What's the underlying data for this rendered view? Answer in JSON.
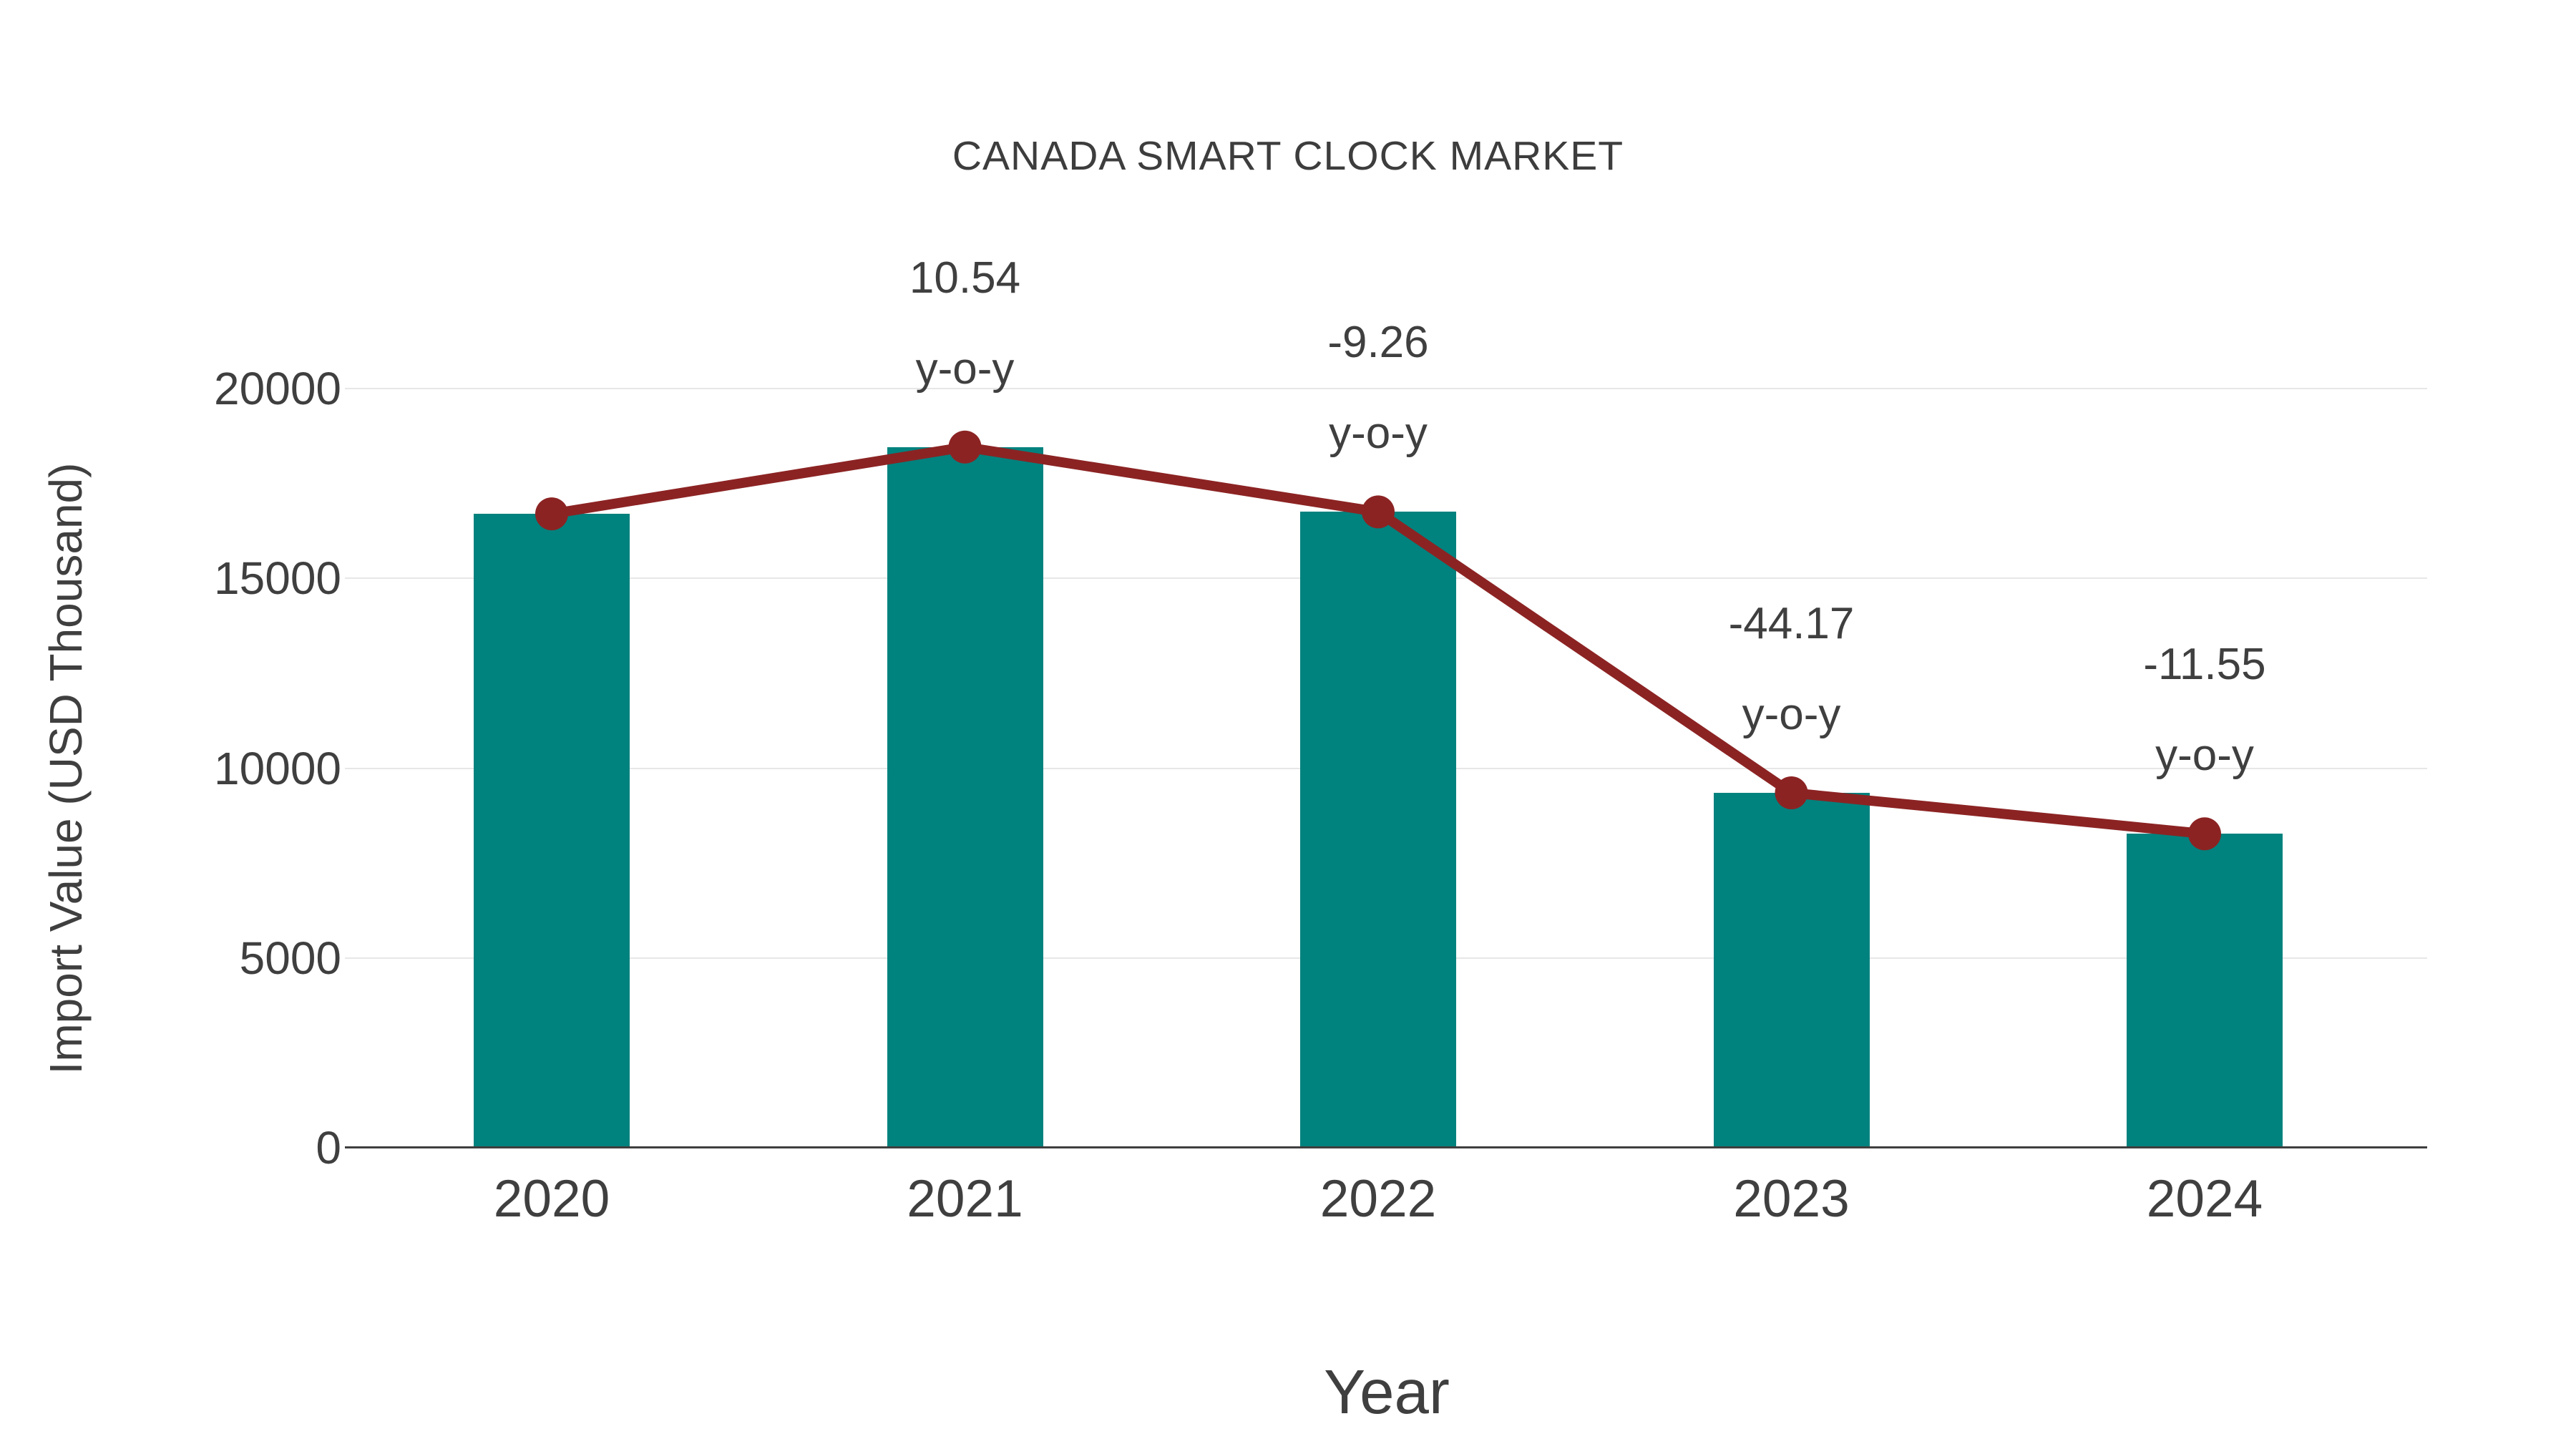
{
  "chart_data": {
    "type": "bar",
    "title": "CANADA SMART CLOCK MARKET",
    "xlabel": "Year",
    "ylabel": "Import Value (USD Thousand)",
    "categories": [
      "2020",
      "2021",
      "2022",
      "2023",
      "2024"
    ],
    "series": [
      {
        "name": "import-value-bars",
        "type": "bar",
        "values": [
          16700,
          18460,
          16750,
          9350,
          8270
        ]
      },
      {
        "name": "import-value-trend-line",
        "type": "line",
        "values": [
          16700,
          18460,
          16750,
          9350,
          8270
        ]
      }
    ],
    "annotations": [
      {
        "category": "2021",
        "value_label": "10.54",
        "suffix_label": "y-o-y"
      },
      {
        "category": "2022",
        "value_label": "-9.26",
        "suffix_label": "y-o-y"
      },
      {
        "category": "2023",
        "value_label": "-44.17",
        "suffix_label": "y-o-y"
      },
      {
        "category": "2024",
        "value_label": "-11.55",
        "suffix_label": "y-o-y"
      }
    ],
    "yticks": [
      0,
      5000,
      10000,
      15000,
      20000
    ],
    "ylim": [
      0,
      20000
    ],
    "grid": true,
    "legend": false,
    "colors": {
      "bar": "#00827e",
      "line": "#8c2323",
      "text": "#3f3f3f",
      "grid": "#e7e7e7",
      "axis": "#3f3f3f",
      "background": "#ffffff"
    }
  }
}
